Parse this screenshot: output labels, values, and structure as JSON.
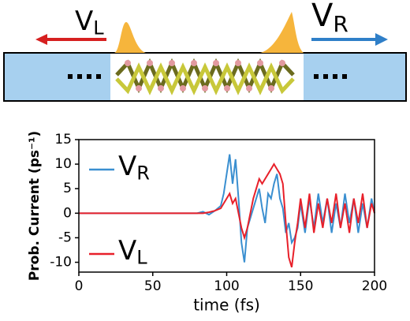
{
  "schematic": {
    "left_label": "VL",
    "right_label": "VR"
  },
  "chart_data": {
    "type": "line",
    "xlabel": "time (fs)",
    "ylabel": "Prob. Current (ps⁻¹)",
    "x": [
      0,
      80,
      84,
      88,
      92,
      96,
      98,
      100,
      102,
      104,
      106,
      108,
      110,
      112,
      114,
      116,
      118,
      120,
      122,
      124,
      126,
      128,
      130,
      132,
      134,
      136,
      138,
      140,
      142,
      144,
      146,
      148,
      150,
      153,
      156,
      159,
      162,
      165,
      168,
      171,
      174,
      177,
      180,
      183,
      186,
      189,
      192,
      195,
      198,
      200
    ],
    "series": [
      {
        "name": "VR",
        "color": "#3a8fd0",
        "values": [
          0,
          0,
          0.3,
          -0.3,
          0.5,
          1.5,
          4,
          8,
          12,
          6,
          11,
          3,
          -6,
          -10,
          -3,
          -1,
          1,
          3,
          5,
          1,
          -2,
          4,
          3,
          6,
          8,
          3,
          1,
          -4,
          -2,
          -6,
          -5,
          -3,
          2,
          -4,
          3,
          -3,
          4,
          -2,
          3,
          -4,
          2,
          -3,
          4,
          -2,
          3,
          -4,
          2,
          -3,
          3,
          0
        ]
      },
      {
        "name": "VL",
        "color": "#e8202a",
        "values": [
          0,
          0,
          0,
          0.2,
          0.5,
          1,
          2,
          3,
          4,
          2,
          3,
          0,
          -3,
          -5,
          -3,
          0,
          3,
          5,
          7,
          6,
          7,
          8,
          9,
          10,
          9,
          8,
          6,
          -2,
          -9,
          -11,
          -6,
          -2,
          3,
          -3,
          4,
          -4,
          2,
          -3,
          3,
          -2,
          4,
          -3,
          2,
          -4,
          3,
          -2,
          4,
          -3,
          2,
          0
        ]
      }
    ],
    "xlim": [
      0,
      200
    ],
    "xticks": [
      0,
      50,
      100,
      150,
      200
    ],
    "ylim": [
      -12,
      15
    ],
    "yticks": [
      -10,
      -5,
      0,
      5,
      10,
      15
    ]
  }
}
